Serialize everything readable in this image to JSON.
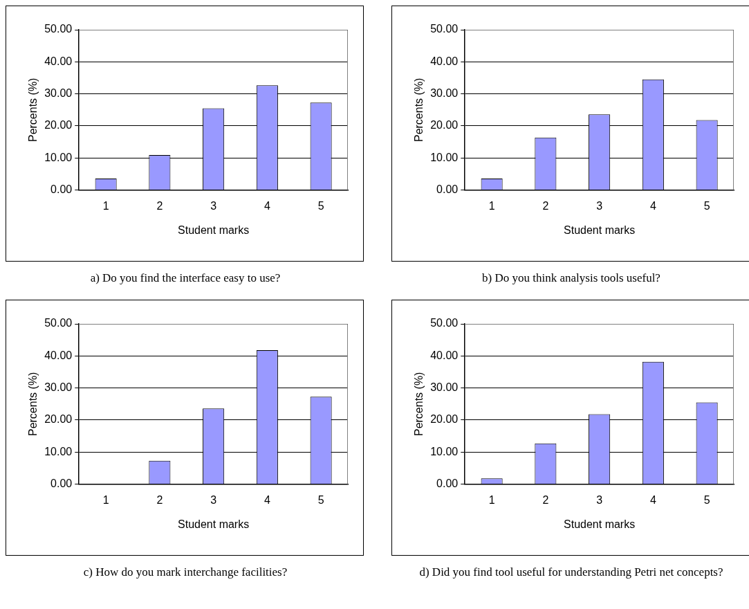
{
  "chart_data": [
    {
      "type": "bar",
      "title": "a) Do you find the interface easy to use?",
      "xlabel": "Student marks",
      "ylabel": "Percents (%)",
      "categories": [
        "1",
        "2",
        "3",
        "4",
        "5"
      ],
      "values": [
        3.6,
        10.9,
        25.5,
        32.7,
        27.3
      ],
      "color": "#9999ff",
      "ylim": [
        0,
        50
      ],
      "yticks": [
        {
          "value": 0,
          "label": "0.00"
        },
        {
          "value": 10,
          "label": "10.00"
        },
        {
          "value": 20,
          "label": "20.00"
        },
        {
          "value": 30,
          "label": "30.00"
        },
        {
          "value": 40,
          "label": "40.00"
        },
        {
          "value": 50,
          "label": "50.00"
        }
      ],
      "grid": "y"
    },
    {
      "type": "bar",
      "title": "b) Do you think analysis tools useful?",
      "xlabel": "Student marks",
      "ylabel": "Percents (%)",
      "categories": [
        "1",
        "2",
        "3",
        "4",
        "5"
      ],
      "values": [
        3.6,
        16.4,
        23.6,
        34.5,
        21.8
      ],
      "color": "#9999ff",
      "ylim": [
        0,
        50
      ],
      "yticks": [
        {
          "value": 0,
          "label": "0.00"
        },
        {
          "value": 10,
          "label": "10.00"
        },
        {
          "value": 20,
          "label": "20.00"
        },
        {
          "value": 30,
          "label": "30.00"
        },
        {
          "value": 40,
          "label": "40.00"
        },
        {
          "value": 50,
          "label": "50.00"
        }
      ],
      "grid": "y"
    },
    {
      "type": "bar",
      "title": "c) How do you mark interchange facilities?",
      "xlabel": "Student marks",
      "ylabel": "Percents (%)",
      "categories": [
        "1",
        "2",
        "3",
        "4",
        "5"
      ],
      "values": [
        0,
        7.3,
        23.6,
        41.8,
        27.3
      ],
      "color": "#9999ff",
      "ylim": [
        0,
        50
      ],
      "yticks": [
        {
          "value": 0,
          "label": "0.00"
        },
        {
          "value": 10,
          "label": "10.00"
        },
        {
          "value": 20,
          "label": "20.00"
        },
        {
          "value": 30,
          "label": "30.00"
        },
        {
          "value": 40,
          "label": "40.00"
        },
        {
          "value": 50,
          "label": "50.00"
        }
      ],
      "grid": "y"
    },
    {
      "type": "bar",
      "title": "d) Did you find tool useful for understanding Petri net concepts?",
      "xlabel": "Student marks",
      "ylabel": "Percents (%)",
      "categories": [
        "1",
        "2",
        "3",
        "4",
        "5"
      ],
      "values": [
        1.8,
        12.7,
        21.8,
        38.2,
        25.5
      ],
      "color": "#9999ff",
      "ylim": [
        0,
        50
      ],
      "yticks": [
        {
          "value": 0,
          "label": "0.00"
        },
        {
          "value": 10,
          "label": "10.00"
        },
        {
          "value": 20,
          "label": "20.00"
        },
        {
          "value": 30,
          "label": "30.00"
        },
        {
          "value": 40,
          "label": "40.00"
        },
        {
          "value": 50,
          "label": "50.00"
        }
      ],
      "grid": "y"
    }
  ]
}
